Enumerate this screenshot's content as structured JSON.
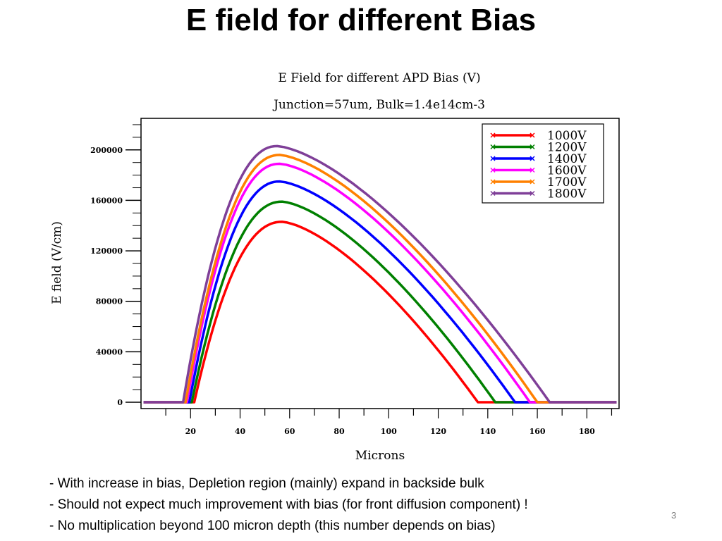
{
  "slide": {
    "title": "E field for different Bias",
    "bullets": [
      "- With increase in bias, Depletion region (mainly) expand in backside bulk",
      "- Should not expect much improvement with bias (for front diffusion component) !",
      "- No multiplication beyond 100 micron depth (this number depends on bias)"
    ],
    "page_number": "3"
  },
  "chart_data": {
    "type": "line",
    "title": "E Field for different APD Bias (V)",
    "subtitle": "Junction=57um, Bulk=1.4e14cm-3",
    "xlabel": "Microns",
    "ylabel": "E field (V/cm)",
    "xlim": [
      0,
      193
    ],
    "ylim": [
      -5000,
      225000
    ],
    "xticks": [
      20,
      40,
      60,
      80,
      100,
      120,
      140,
      160,
      180
    ],
    "yticks": [
      0,
      40000,
      80000,
      120000,
      160000,
      200000
    ],
    "ytick_labels": [
      "0",
      "40000",
      "80000",
      "120000",
      "160000",
      "200000"
    ],
    "legend_position": "top-right",
    "grid": false,
    "series": [
      {
        "name": "1000V",
        "color": "#ff0000",
        "x0": 21.5,
        "peak_x": 57,
        "peak_y": 143000,
        "x_end": 136
      },
      {
        "name": "1200V",
        "color": "#008000",
        "x0": 20.5,
        "peak_x": 57,
        "peak_y": 159000,
        "x_end": 143
      },
      {
        "name": "1400V",
        "color": "#0000ff",
        "x0": 19.5,
        "peak_x": 56,
        "peak_y": 175000,
        "x_end": 151
      },
      {
        "name": "1600V",
        "color": "#ff00ff",
        "x0": 18.5,
        "peak_x": 56,
        "peak_y": 189000,
        "x_end": 157
      },
      {
        "name": "1700V",
        "color": "#ff8000",
        "x0": 18,
        "peak_x": 56,
        "peak_y": 196000,
        "x_end": 160
      },
      {
        "name": "1800V",
        "color": "#7f3f98",
        "x0": 17,
        "peak_x": 55,
        "peak_y": 203000,
        "x_end": 165
      }
    ]
  }
}
